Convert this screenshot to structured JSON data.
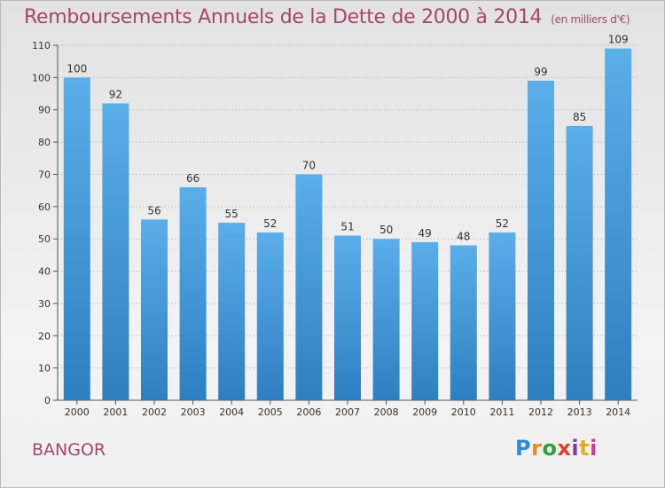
{
  "title": "Remboursements Annuels de la Dette de 2000 à 2014",
  "subtitle": "(en milliers d'€)",
  "city": "BANGOR",
  "logo": {
    "text": "Proxiti"
  },
  "colors": {
    "title": "#a4466f",
    "bar_light": "#5aaeea",
    "bar_dark": "#2e7fc0",
    "grid": "#c8c8c8"
  },
  "chart_data": {
    "type": "bar",
    "categories": [
      "2000",
      "2001",
      "2002",
      "2003",
      "2004",
      "2005",
      "2006",
      "2007",
      "2008",
      "2009",
      "2010",
      "2011",
      "2012",
      "2013",
      "2014"
    ],
    "values": [
      100,
      92,
      56,
      66,
      55,
      52,
      70,
      51,
      50,
      49,
      48,
      52,
      99,
      85,
      109
    ],
    "ylim": [
      0,
      110
    ],
    "yticks": [
      0,
      10,
      20,
      30,
      40,
      50,
      60,
      70,
      80,
      90,
      100,
      110
    ],
    "grid": true
  }
}
